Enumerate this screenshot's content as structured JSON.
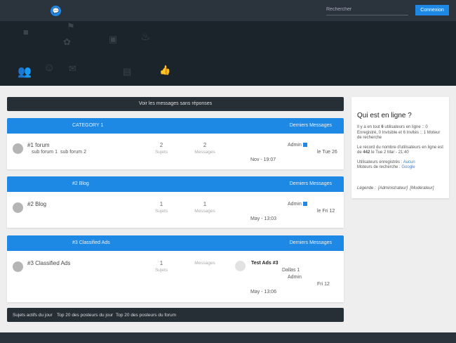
{
  "header": {
    "search_placeholder": "Rechercher",
    "login_label": "Connexion"
  },
  "unanswered_label": "Voir les messages sans réponses",
  "colors": {
    "accent": "#1e88e5",
    "dark": "#262e36"
  },
  "categories": [
    {
      "title": "CATEGORY 1",
      "right": "Derniers Messages",
      "forum": {
        "name": "#1 forum",
        "subforums": [
          "sub forum 1",
          "sub forum 2"
        ],
        "topics": "2",
        "topics_label": "Sujets",
        "posts": "2",
        "posts_label": "Messages",
        "last_author": "Admin",
        "last_date_a": "le Tue 26",
        "last_date_b": "Nov - 19:07"
      }
    },
    {
      "title": "#2 Blog",
      "right": "Derniers Messages",
      "forum": {
        "name": "#2 Blog",
        "topics": "1",
        "topics_label": "Sujets",
        "posts": "1",
        "posts_label": "Messages",
        "last_author": "Admin",
        "last_date_a": "le Fri 12",
        "last_date_b": "May - 13:03"
      }
    },
    {
      "title": "#3 Classified Ads",
      "right": "Derniers Messages",
      "forum": {
        "name": "#3 Classified Ads",
        "topics": "1",
        "topics_label": "Sujets",
        "posts_label": "Messages",
        "last_title": "Test Ads #3",
        "last_line1": "Dallas 1",
        "last_author": "Admin",
        "last_date_a": "Fri 12",
        "last_date_b": "May - 13:06"
      }
    }
  ],
  "bottom_nav": [
    "Sujets actifs du jour",
    "Top 20 des posteurs du jour",
    "Top 20 des posteurs du forum"
  ],
  "sidebar": {
    "title": "Qui est en ligne ?",
    "p1_a": "Il y a en tout ",
    "p1_b": "6",
    "p1_c": " utilisateurs en ligne :: 0 Enregistré, 0 Invisible et 6 Invités :: 1 Moteur de recherche",
    "p2_a": "Le record du nombre d'utilisateurs en ligne est de ",
    "p2_b": "442",
    "p2_c": " le Tue 2 Mar - 21:40",
    "p3_a": "Utilisateurs enregistrés : ",
    "p3_b": "Aucun",
    "p4_a": "Moteurs de recherche : ",
    "p4_b": "Google",
    "legend": "Légende :",
    "legend_admin": "[Administrateur]",
    "legend_mod": "[Modérateur]"
  }
}
